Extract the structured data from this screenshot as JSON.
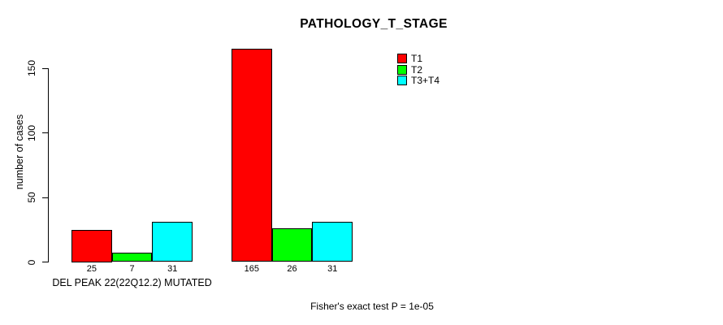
{
  "chart_data": {
    "type": "bar",
    "title": "PATHOLOGY_T_STAGE",
    "ylabel": "number of cases",
    "xlabel": "",
    "ylim": [
      0,
      165
    ],
    "yticks": [
      0,
      50,
      100,
      150
    ],
    "grid": false,
    "categories": [
      "DEL PEAK 22(22Q12.2) MUTATED",
      ""
    ],
    "series": [
      {
        "name": "T1",
        "color": "#ff0000",
        "values": [
          25,
          165
        ]
      },
      {
        "name": "T2",
        "color": "#00ff00",
        "values": [
          7,
          26
        ]
      },
      {
        "name": "T3+T4",
        "color": "#00ffff",
        "values": [
          31,
          31
        ]
      }
    ],
    "bar_value_labels_shown": true,
    "legend_position": "top-right",
    "annotation": "Fisher's exact test P = 1e-05",
    "bar_border_color": "#000000",
    "background_color": "#ffffff",
    "text_color": "#000000"
  }
}
